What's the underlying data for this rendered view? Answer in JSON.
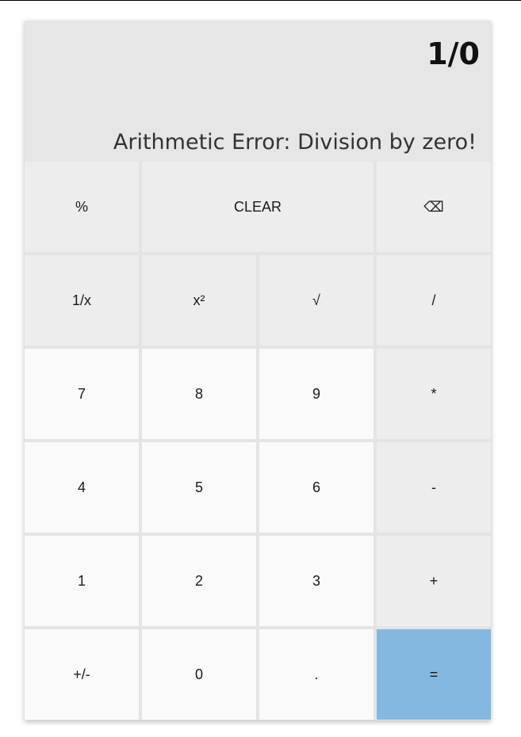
{
  "display": {
    "expression": "1/0",
    "result": "Arithmetic Error: Division by zero!"
  },
  "keys": {
    "percent": "%",
    "clear": "CLEAR",
    "backspace": "⌫",
    "reciprocal": "1/x",
    "square": "x²",
    "sqrt": "√",
    "divide": "/",
    "seven": "7",
    "eight": "8",
    "nine": "9",
    "multiply": "*",
    "four": "4",
    "five": "5",
    "six": "6",
    "subtract": "-",
    "one": "1",
    "two": "2",
    "three": "3",
    "add": "+",
    "negate": "+/-",
    "zero": "0",
    "decimal": ".",
    "equals": "="
  },
  "colors": {
    "display_bg": "#e6e6e6",
    "function_key_bg": "#ededed",
    "digit_key_bg": "#fafafa",
    "equals_key_bg": "#84b8e0"
  }
}
